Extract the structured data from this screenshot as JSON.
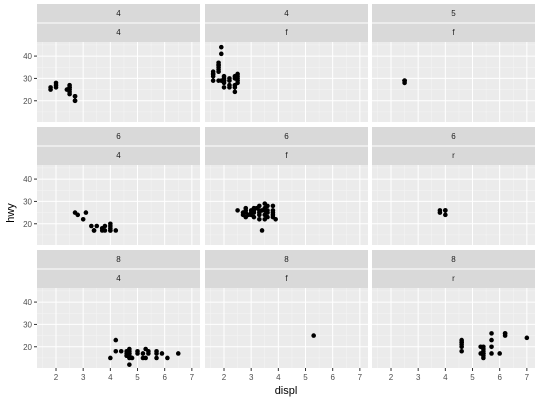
{
  "chart_data": {
    "type": "scatter",
    "facet_layout": "grid 3x3, strip labels (cyl, drv)",
    "xlabel": "displ",
    "ylabel": "hwy",
    "xlim": [
      1.3,
      7.3
    ],
    "ylim": [
      10.5,
      46.3
    ],
    "x_ticks": [
      2,
      3,
      4,
      5,
      6,
      7
    ],
    "y_ticks": [
      20,
      30,
      40
    ],
    "grid": true,
    "colors": {
      "panel_bg": "#ebebeb",
      "strip_bg": "#d9d9d9",
      "grid_major": "#ffffff",
      "point": "#000000"
    },
    "panels": [
      {
        "strip": [
          "4",
          "4"
        ],
        "points": [
          [
            1.8,
            26
          ],
          [
            1.8,
            25
          ],
          [
            2.0,
            28
          ],
          [
            2.0,
            27
          ],
          [
            2.0,
            26
          ],
          [
            2.4,
            25
          ],
          [
            2.5,
            26
          ],
          [
            2.5,
            25
          ],
          [
            2.5,
            24
          ],
          [
            2.5,
            23
          ],
          [
            2.5,
            27
          ],
          [
            2.5,
            26
          ],
          [
            2.7,
            22
          ],
          [
            2.7,
            20
          ],
          [
            2.7,
            20
          ],
          [
            2.7,
            22
          ]
        ]
      },
      {
        "strip": [
          "4",
          "f"
        ],
        "points": [
          [
            1.6,
            33
          ],
          [
            1.6,
            32
          ],
          [
            1.6,
            31
          ],
          [
            1.6,
            29
          ],
          [
            1.6,
            32
          ],
          [
            1.8,
            29
          ],
          [
            1.8,
            34
          ],
          [
            1.8,
            35
          ],
          [
            1.8,
            36
          ],
          [
            1.8,
            37
          ],
          [
            1.8,
            36
          ],
          [
            1.8,
            33
          ],
          [
            1.9,
            44
          ],
          [
            1.9,
            41
          ],
          [
            1.9,
            29
          ],
          [
            2.0,
            30
          ],
          [
            2.0,
            29
          ],
          [
            2.0,
            28
          ],
          [
            2.0,
            26
          ],
          [
            2.0,
            29
          ],
          [
            2.2,
            27
          ],
          [
            2.2,
            26
          ],
          [
            2.2,
            29
          ],
          [
            2.4,
            30
          ],
          [
            2.4,
            27
          ],
          [
            2.4,
            31
          ],
          [
            2.4,
            26
          ],
          [
            2.4,
            24
          ],
          [
            2.5,
            29
          ],
          [
            2.5,
            31
          ],
          [
            2.5,
            32
          ],
          [
            2.5,
            30
          ],
          [
            2.5,
            28
          ],
          [
            2.2,
            30
          ],
          [
            2.0,
            31
          ]
        ]
      },
      {
        "strip": [
          "5",
          "f"
        ],
        "points": [
          [
            2.5,
            29
          ],
          [
            2.5,
            28
          ],
          [
            2.5,
            29
          ],
          [
            2.5,
            29
          ]
        ]
      },
      {
        "strip": [
          "6",
          "4"
        ],
        "points": [
          [
            2.7,
            25
          ],
          [
            2.8,
            24
          ],
          [
            3.0,
            22
          ],
          [
            3.1,
            25
          ],
          [
            3.3,
            19
          ],
          [
            3.4,
            17
          ],
          [
            3.4,
            17
          ],
          [
            3.5,
            19
          ],
          [
            3.7,
            18
          ],
          [
            3.7,
            17
          ],
          [
            3.8,
            19
          ],
          [
            3.8,
            17
          ],
          [
            4.0,
            20
          ],
          [
            4.0,
            18
          ],
          [
            4.0,
            17
          ],
          [
            4.0,
            17
          ],
          [
            4.0,
            19
          ],
          [
            4.2,
            17
          ]
        ]
      },
      {
        "strip": [
          "6",
          "f"
        ],
        "points": [
          [
            2.5,
            26
          ],
          [
            2.7,
            24
          ],
          [
            2.8,
            25
          ],
          [
            2.8,
            23
          ],
          [
            2.8,
            26
          ],
          [
            2.9,
            24
          ],
          [
            3.0,
            26
          ],
          [
            3.0,
            25
          ],
          [
            3.1,
            27
          ],
          [
            3.1,
            26
          ],
          [
            3.1,
            25
          ],
          [
            3.3,
            24
          ],
          [
            3.3,
            25
          ],
          [
            3.3,
            28
          ],
          [
            3.3,
            26
          ],
          [
            3.3,
            22
          ],
          [
            3.4,
            17
          ],
          [
            3.5,
            26
          ],
          [
            3.5,
            29
          ],
          [
            3.5,
            24
          ],
          [
            3.5,
            27
          ],
          [
            3.6,
            28
          ],
          [
            3.6,
            26
          ],
          [
            3.8,
            26
          ],
          [
            3.8,
            25
          ],
          [
            3.8,
            23
          ],
          [
            3.8,
            28
          ],
          [
            3.9,
            22
          ],
          [
            2.7,
            25
          ],
          [
            3.0,
            24
          ],
          [
            3.2,
            27
          ],
          [
            3.5,
            22
          ],
          [
            3.6,
            25
          ],
          [
            2.8,
            27
          ],
          [
            3.1,
            23
          ],
          [
            3.4,
            26
          ],
          [
            3.6,
            23
          ],
          [
            3.8,
            24
          ]
        ]
      },
      {
        "strip": [
          "6",
          "r"
        ],
        "points": [
          [
            3.8,
            26
          ],
          [
            3.8,
            25
          ],
          [
            4.0,
            26
          ],
          [
            4.0,
            24
          ],
          [
            4.0,
            26
          ]
        ]
      },
      {
        "strip": [
          "8",
          "4"
        ],
        "points": [
          [
            4.0,
            15
          ],
          [
            4.2,
            23
          ],
          [
            4.2,
            18
          ],
          [
            4.4,
            18
          ],
          [
            4.6,
            17
          ],
          [
            4.6,
            16
          ],
          [
            4.6,
            18
          ],
          [
            4.7,
            15
          ],
          [
            4.7,
            17
          ],
          [
            4.7,
            18
          ],
          [
            4.7,
            19
          ],
          [
            4.7,
            16
          ],
          [
            4.7,
            12
          ],
          [
            4.8,
            15
          ],
          [
            5.0,
            17
          ],
          [
            5.2,
            17
          ],
          [
            5.3,
            19
          ],
          [
            5.3,
            15
          ],
          [
            5.4,
            17
          ],
          [
            5.4,
            18
          ],
          [
            5.7,
            17
          ],
          [
            5.7,
            15
          ],
          [
            5.7,
            18
          ],
          [
            5.9,
            17
          ],
          [
            6.1,
            15
          ],
          [
            6.5,
            17
          ],
          [
            5.2,
            15
          ],
          [
            5.0,
            18
          ],
          [
            4.7,
            17
          ],
          [
            4.6,
            16
          ]
        ]
      },
      {
        "strip": [
          "8",
          "f"
        ],
        "points": [
          [
            5.3,
            25
          ]
        ]
      },
      {
        "strip": [
          "8",
          "r"
        ],
        "points": [
          [
            4.6,
            22
          ],
          [
            4.6,
            21
          ],
          [
            4.6,
            23
          ],
          [
            4.6,
            18
          ],
          [
            4.6,
            20
          ],
          [
            5.3,
            20
          ],
          [
            5.3,
            17
          ],
          [
            5.4,
            17
          ],
          [
            5.4,
            20
          ],
          [
            5.4,
            18
          ],
          [
            5.4,
            19
          ],
          [
            5.4,
            17
          ],
          [
            5.4,
            16
          ],
          [
            5.7,
            26
          ],
          [
            5.7,
            23
          ],
          [
            5.7,
            17
          ],
          [
            5.7,
            20
          ],
          [
            6.0,
            17
          ],
          [
            6.2,
            26
          ],
          [
            6.2,
            25
          ],
          [
            7.0,
            24
          ],
          [
            4.6,
            22
          ],
          [
            5.4,
            15
          ],
          [
            6.2,
            26
          ]
        ]
      }
    ]
  }
}
